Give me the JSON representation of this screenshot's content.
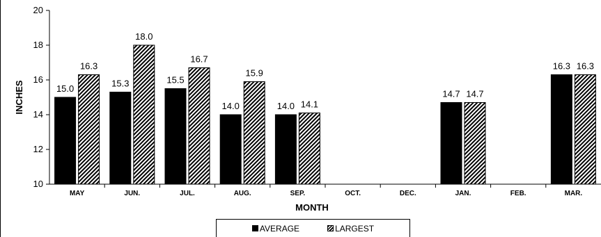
{
  "chart_data": {
    "type": "bar",
    "title": "",
    "xlabel": "MONTH",
    "ylabel": "INCHES",
    "ylim": [
      10,
      20
    ],
    "yticks": [
      10,
      12,
      14,
      16,
      18,
      20
    ],
    "categories": [
      "MAY",
      "JUN.",
      "JUL.",
      "AUG.",
      "SEP.",
      "OCT.",
      "DEC.",
      "JAN.",
      "FEB.",
      "MAR."
    ],
    "series": [
      {
        "name": "AVERAGE",
        "values": [
          15.0,
          15.3,
          15.5,
          14.0,
          14.0,
          null,
          null,
          14.7,
          null,
          16.3
        ],
        "color": "#000000",
        "pattern": "solid"
      },
      {
        "name": "LARGEST",
        "values": [
          16.3,
          18.0,
          16.7,
          15.9,
          14.1,
          null,
          null,
          14.7,
          null,
          16.3
        ],
        "color": "#000000",
        "pattern": "hatch"
      }
    ],
    "data_labels": {
      "AVERAGE": [
        "15.0",
        "15.3",
        "15.5",
        "14.0",
        "14.0",
        "",
        "",
        "14.7",
        "",
        "16.3"
      ],
      "LARGEST": [
        "16.3",
        "18.0",
        "16.7",
        "15.9",
        "14.1",
        "",
        "",
        "14.7",
        "",
        "16.3"
      ]
    },
    "grid": false,
    "legend_position": "bottom"
  }
}
